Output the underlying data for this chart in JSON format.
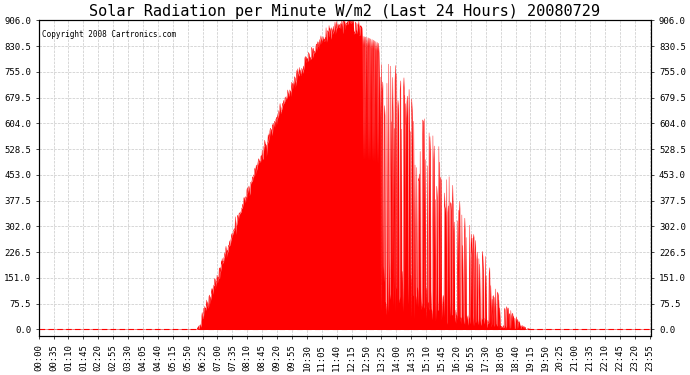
{
  "title": "Solar Radiation per Minute W/m2 (Last 24 Hours) 20080729",
  "copyright": "Copyright 2008 Cartronics.com",
  "bg_color": "#ffffff",
  "plot_bg_color": "#ffffff",
  "line_color": "#ff0000",
  "fill_color": "#ff0000",
  "dashed_line_color": "#ff0000",
  "grid_color": "#c8c8c8",
  "yticks": [
    0.0,
    75.5,
    151.0,
    226.5,
    302.0,
    377.5,
    453.0,
    528.5,
    604.0,
    679.5,
    755.0,
    830.5,
    906.0
  ],
  "ymin": -20,
  "ymax": 906.0,
  "n_points": 1440,
  "title_fontsize": 11,
  "tick_fontsize": 6.5,
  "tick_interval_minutes": 35
}
